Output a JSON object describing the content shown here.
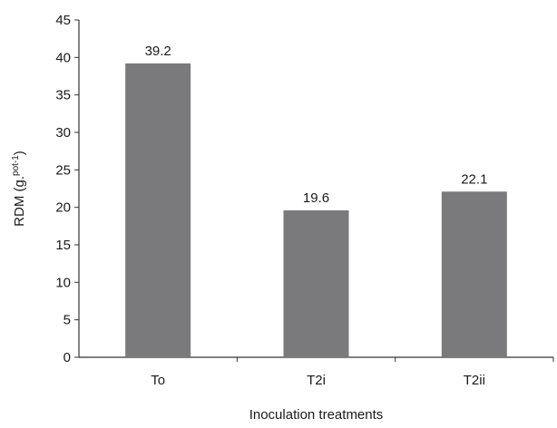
{
  "chart_data": {
    "type": "bar",
    "title": "",
    "xlabel": "Inoculation treatments",
    "ylabel_main": "RDM (g.",
    "ylabel_sup": "pot-1",
    "ylabel_close": ")",
    "categories": [
      "To",
      "T2i",
      "T2ii"
    ],
    "values": [
      39.2,
      19.6,
      22.1
    ],
    "data_labels": [
      "39.2",
      "19.6",
      "22.1"
    ],
    "ylim": [
      0,
      45
    ],
    "yticks": [
      0,
      5,
      10,
      15,
      20,
      25,
      30,
      35,
      40,
      45
    ],
    "grid": false,
    "legend": "none",
    "bar_color": "#7a7a7c",
    "axis_color": "#333333"
  }
}
